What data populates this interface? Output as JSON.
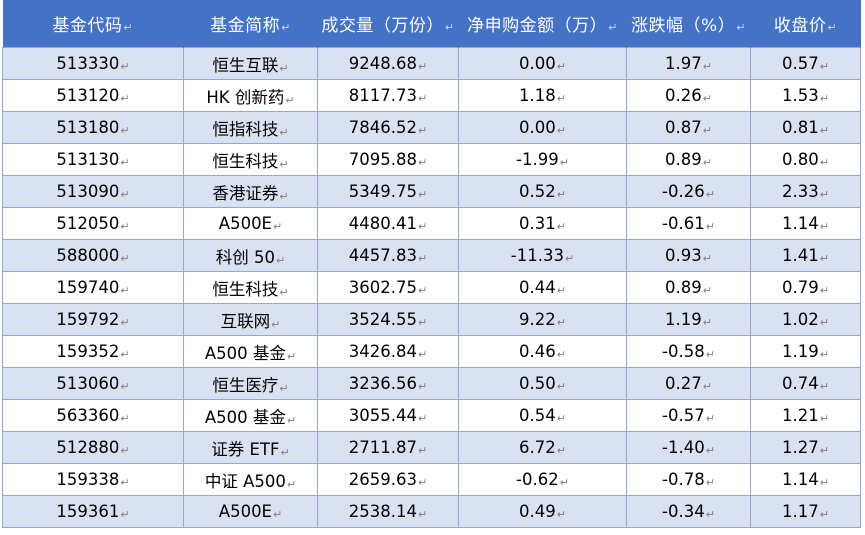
{
  "table": {
    "headers": [
      "基金代码",
      "基金简称",
      "成交量（万份）",
      "净申购金额（万）",
      "涨跌幅（%）",
      "收盘价"
    ],
    "mark": "↵",
    "rows": [
      [
        "513330",
        "恒生互联",
        "9248.68",
        "0.00",
        "1.97",
        "0.57"
      ],
      [
        "513120",
        "HK 创新药",
        "8117.73",
        "1.18",
        "0.26",
        "1.53"
      ],
      [
        "513180",
        "恒指科技",
        "7846.52",
        "0.00",
        "0.87",
        "0.81"
      ],
      [
        "513130",
        "恒生科技",
        "7095.88",
        "-1.99",
        "0.89",
        "0.80"
      ],
      [
        "513090",
        "香港证券",
        "5349.75",
        "0.52",
        "-0.26",
        "2.33"
      ],
      [
        "512050",
        "A500E",
        "4480.41",
        "0.31",
        "-0.61",
        "1.14"
      ],
      [
        "588000",
        "科创 50",
        "4457.83",
        "-11.33",
        "0.93",
        "1.41"
      ],
      [
        "159740",
        "恒生科技",
        "3602.75",
        "0.44",
        "0.89",
        "0.79"
      ],
      [
        "159792",
        "互联网",
        "3524.55",
        "9.22",
        "1.19",
        "1.02"
      ],
      [
        "159352",
        "A500 基金",
        "3426.84",
        "0.46",
        "-0.58",
        "1.19"
      ],
      [
        "513060",
        "恒生医疗",
        "3236.56",
        "0.50",
        "0.27",
        "0.74"
      ],
      [
        "563360",
        "A500 基金",
        "3055.44",
        "0.54",
        "-0.57",
        "1.21"
      ],
      [
        "512880",
        "证券 ETF",
        "2711.87",
        "6.72",
        "-1.40",
        "1.27"
      ],
      [
        "159338",
        "中证 A500",
        "2659.63",
        "-0.62",
        "-0.78",
        "1.14"
      ],
      [
        "159361",
        "A500E",
        "2538.14",
        "0.49",
        "-0.34",
        "1.17"
      ]
    ]
  }
}
